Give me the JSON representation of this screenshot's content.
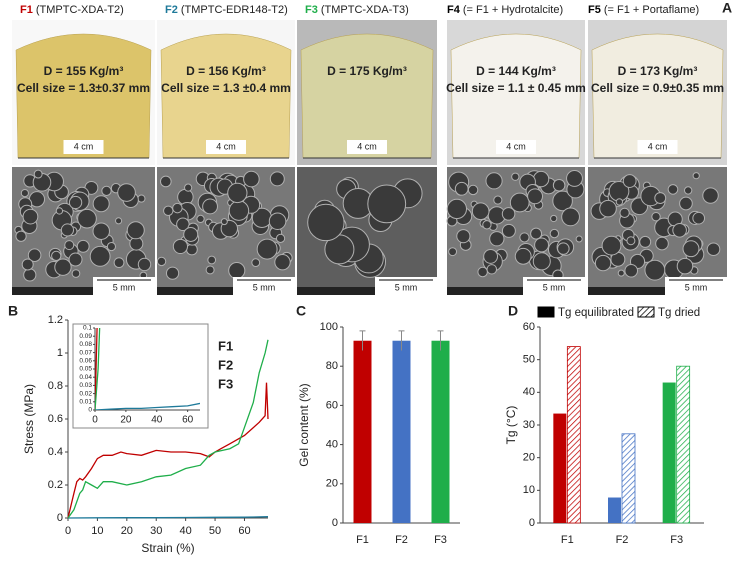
{
  "panel_labels": [
    "A",
    "B",
    "C",
    "D"
  ],
  "panel_a": {
    "samples": [
      {
        "code": "F1",
        "color": "#c00000",
        "name": "(TMPTC-XDA-T2)",
        "density": "D = 155 Kg/m³",
        "cell_size": "Cell size = 1.3±0.37 mm",
        "photo_scale": "4 cm",
        "sem_scale": "5 mm"
      },
      {
        "code": "F2",
        "color": "#1f7a9a",
        "name": "(TMPTC-EDR148-T2)",
        "density": "D = 156 Kg/m³",
        "cell_size": "Cell size = 1.3 ±0.4 mm",
        "photo_scale": "4 cm",
        "sem_scale": "5 mm"
      },
      {
        "code": "F3",
        "color": "#1fae4a",
        "name": "(TMPTC-XDA-T3)",
        "density": "D = 175 Kg/m³",
        "photo_scale": "4 cm",
        "sem_scale": "5 mm"
      },
      {
        "code": "F4",
        "color": "#000000",
        "name": "(= F1 + Hydrotalcite)",
        "density": "D = 144 Kg/m³",
        "cell_size": "Cell size = 1.1 ± 0.45 mm",
        "photo_scale": "4 cm",
        "sem_scale": "5 mm"
      },
      {
        "code": "F5",
        "color": "#000000",
        "name": "(= F1 + Portaflame)",
        "density": "D = 173 Kg/m³",
        "cell_size": "Cell size = 0.9±0.35 mm",
        "photo_scale": "4 cm",
        "sem_scale": "5 mm"
      }
    ]
  },
  "chart_data": [
    {
      "type": "line",
      "x_label": "Strain (%)",
      "y_label": "Stress (MPa)",
      "xlim": [
        0,
        68
      ],
      "xticks": [
        0,
        10,
        20,
        30,
        40,
        50,
        60
      ],
      "ylim": [
        0,
        1.2
      ],
      "yticks": [
        0,
        0.2,
        0.4,
        0.6,
        0.8,
        1,
        1.2
      ],
      "series": [
        {
          "name": "F1",
          "color": "#c00000",
          "x": [
            0,
            2,
            3,
            4,
            5,
            6,
            8,
            10,
            12,
            15,
            18,
            20,
            25,
            30,
            35,
            40,
            45,
            48,
            50,
            52,
            55,
            60,
            65,
            67,
            67.5,
            68
          ],
          "values": [
            0,
            0.15,
            0.22,
            0.24,
            0.23,
            0.25,
            0.3,
            0.36,
            0.38,
            0.38,
            0.4,
            0.39,
            0.38,
            0.41,
            0.4,
            0.4,
            0.39,
            0.37,
            0.4,
            0.42,
            0.45,
            0.5,
            0.58,
            0.62,
            0.82,
            0.6
          ]
        },
        {
          "name": "F2",
          "color": "#1f7a9a",
          "x": [
            0,
            10,
            20,
            30,
            40,
            50,
            60,
            68
          ],
          "values": [
            0,
            0.001,
            0.002,
            0.002,
            0.003,
            0.004,
            0.005,
            0.008
          ]
        },
        {
          "name": "F3",
          "color": "#1fae4a",
          "x": [
            0,
            2,
            4,
            5,
            6,
            8,
            10,
            12,
            15,
            20,
            25,
            30,
            35,
            40,
            45,
            48,
            50,
            55,
            58,
            60,
            63,
            65,
            67,
            68
          ],
          "values": [
            0,
            0.05,
            0.15,
            0.17,
            0.22,
            0.2,
            0.18,
            0.22,
            0.22,
            0.2,
            0.22,
            0.25,
            0.26,
            0.3,
            0.32,
            0.38,
            0.4,
            0.42,
            0.45,
            0.55,
            0.7,
            0.88,
            1.0,
            1.08
          ]
        }
      ],
      "inset": {
        "xlim": [
          0,
          68
        ],
        "xticks": [
          0,
          20,
          40,
          60
        ],
        "ylim": [
          0,
          0.1
        ],
        "yticks": [
          0,
          0.01,
          0.02,
          0.03,
          0.04,
          0.05,
          0.06,
          0.07,
          0.08,
          0.09,
          0.1
        ]
      }
    },
    {
      "type": "bar",
      "y_label": "Gel content (%)",
      "categories": [
        "F1",
        "F2",
        "F3"
      ],
      "values": [
        93,
        93,
        93
      ],
      "errors": [
        5,
        5,
        5
      ],
      "colors": [
        "#c00000",
        "#4472c4",
        "#1fae4a"
      ],
      "ylim": [
        0,
        100
      ],
      "yticks": [
        0,
        20,
        40,
        60,
        80,
        100
      ]
    },
    {
      "type": "grouped-bar",
      "y_label": "Tg (°C)",
      "categories": [
        "F1",
        "F2",
        "F3"
      ],
      "colors": [
        "#c00000",
        "#4472c4",
        "#1fae4a"
      ],
      "series": [
        {
          "name": "Tg equilibrated",
          "color": "#000000",
          "pattern": "solid",
          "values": [
            33.5,
            7.8,
            43
          ]
        },
        {
          "name": "Tg dried",
          "color": "#000000",
          "pattern": "hatch",
          "values": [
            54,
            27.3,
            48
          ]
        }
      ],
      "ylim": [
        0,
        60
      ],
      "yticks": [
        0,
        10,
        20,
        30,
        40,
        50,
        60
      ]
    }
  ]
}
